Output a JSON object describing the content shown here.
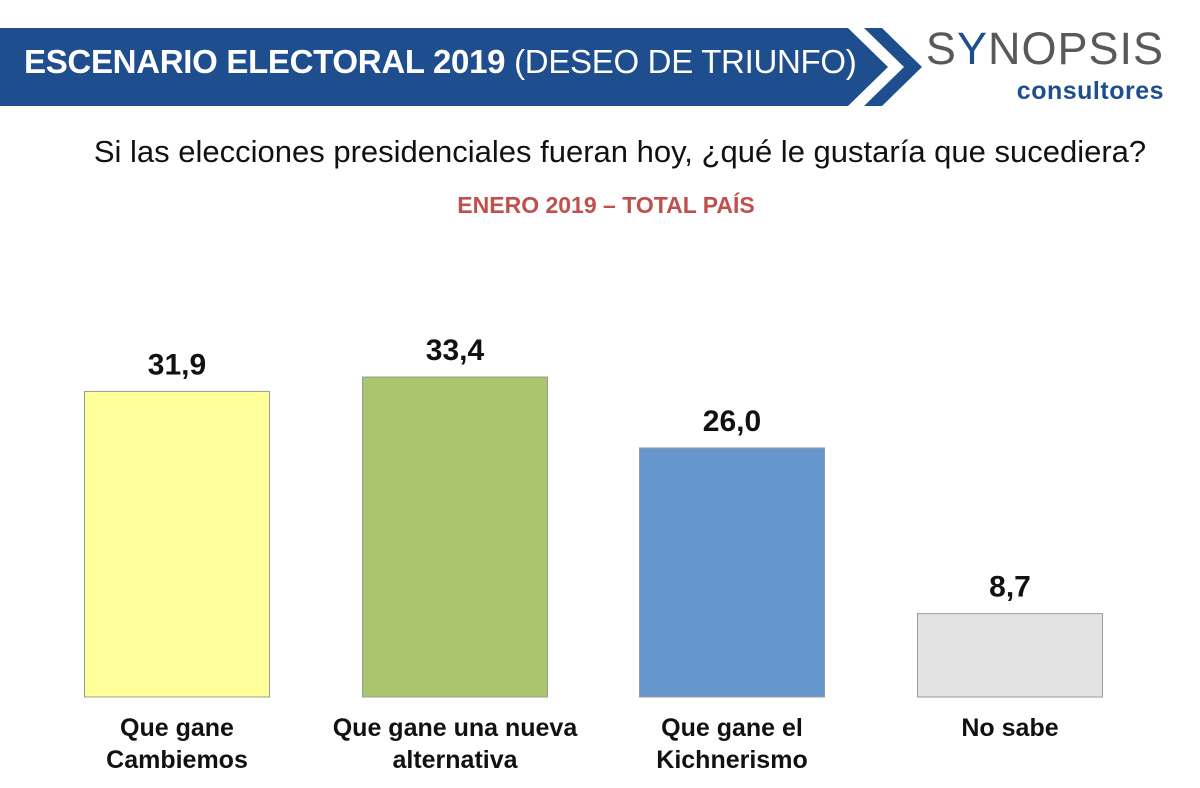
{
  "header": {
    "title_bold": "ESCENARIO ELECTORAL 2019",
    "title_rest": "(DESEO DE TRIUNFO)",
    "banner_color": "#1f4e8f"
  },
  "logo": {
    "name_part1": "S",
    "name_accent": "Y",
    "name_part2": "NOPSIS",
    "sub": "consultores"
  },
  "question": "Si las elecciones presidenciales fueran hoy, ¿qué le gustaría que sucediera?",
  "subtitle": "ENERO 2019 – TOTAL PAÍS",
  "chart_data": {
    "type": "bar",
    "title": "",
    "xlabel": "",
    "ylabel": "",
    "ylim": [
      0,
      40
    ],
    "grid": false,
    "categories": [
      [
        "Que gane",
        "Cambiemos"
      ],
      [
        "Que gane una nueva",
        "alternativa"
      ],
      [
        "Que gane el",
        "Kichnerismo"
      ],
      [
        "No sabe"
      ]
    ],
    "values": [
      31.9,
      33.4,
      26.0,
      8.7
    ],
    "value_labels": [
      "31,9",
      "33,4",
      "26,0",
      "8,7"
    ],
    "colors": [
      "#ffff99",
      "#a9c56e",
      "#6597cd",
      "#e3e3e3"
    ]
  }
}
